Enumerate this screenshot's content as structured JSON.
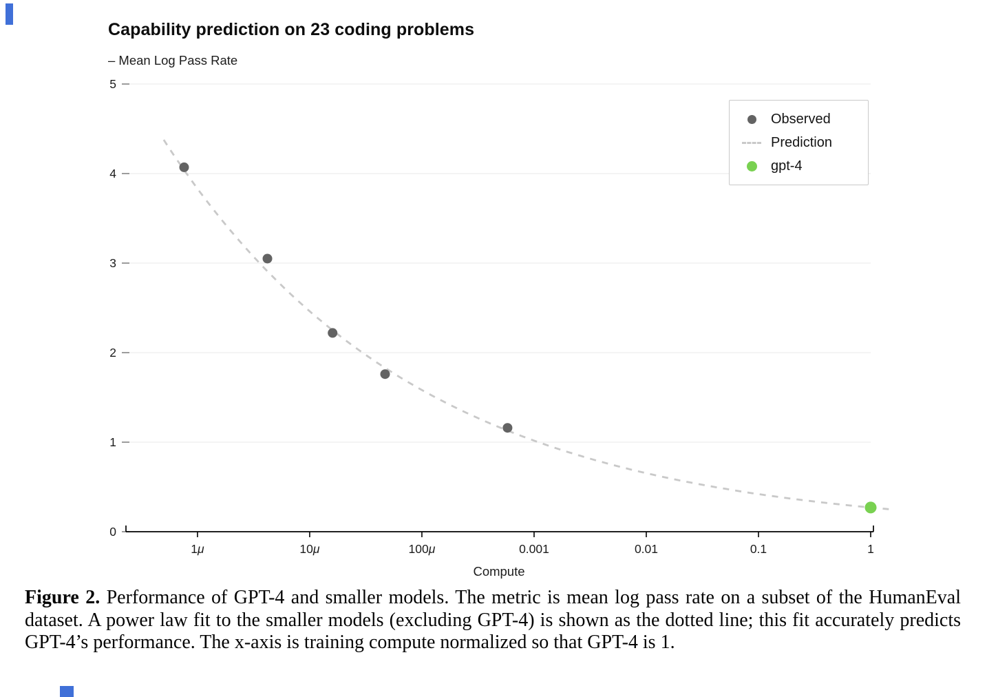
{
  "page": {
    "artifact_color": "#4070d8"
  },
  "caption": {
    "label": "Figure 2.",
    "text": "Performance of GPT-4 and smaller models. The metric is mean log pass rate on a subset of the HumanEval dataset. A power law fit to the smaller models (excluding GPT-4) is shown as the dotted line; this fit accurately predicts GPT-4’s performance. The x-axis is training compute normalized so that GPT-4 is 1."
  },
  "chart_data": {
    "type": "scatter",
    "title": "Capability prediction on 23 coding problems",
    "xlabel": "Compute",
    "ylabel": "– Mean Log Pass Rate",
    "x_scale": "log",
    "xlim": [
      2.37e-07,
      1.0
    ],
    "ylim": [
      0,
      5
    ],
    "y_ticks": [
      0,
      1,
      2,
      3,
      4,
      5
    ],
    "y_gridlines": [
      1,
      2,
      3,
      4,
      5
    ],
    "x_ticks": [
      {
        "value": 1e-06,
        "label": "1μ"
      },
      {
        "value": 1e-05,
        "label": "10μ"
      },
      {
        "value": 0.0001,
        "label": "100μ"
      },
      {
        "value": 0.001,
        "label": "0.001"
      },
      {
        "value": 0.01,
        "label": "0.01"
      },
      {
        "value": 0.1,
        "label": "0.1"
      },
      {
        "value": 1,
        "label": "1"
      }
    ],
    "series": [
      {
        "name": "Observed",
        "type": "scatter",
        "color": "#636363",
        "marker_radius": 7,
        "points": [
          [
            7.6e-07,
            4.07
          ],
          [
            4.2e-06,
            3.05
          ],
          [
            1.6e-05,
            2.22
          ],
          [
            4.7e-05,
            1.76
          ],
          [
            0.00058,
            1.16
          ]
        ]
      },
      {
        "name": "Prediction",
        "type": "line",
        "style": "dashed",
        "color": "#c9c9c9",
        "power_law_fit": {
          "coefficient": 0.27,
          "exponent": -0.192
        },
        "x_range": [
          5e-07,
          1.45
        ]
      },
      {
        "name": "gpt-4",
        "type": "scatter",
        "color": "#79d151",
        "marker_radius": 8.5,
        "points": [
          [
            1.0,
            0.27
          ]
        ]
      }
    ],
    "legend": {
      "position": "top-right",
      "entries": [
        "Observed",
        "Prediction",
        "gpt-4"
      ]
    }
  }
}
